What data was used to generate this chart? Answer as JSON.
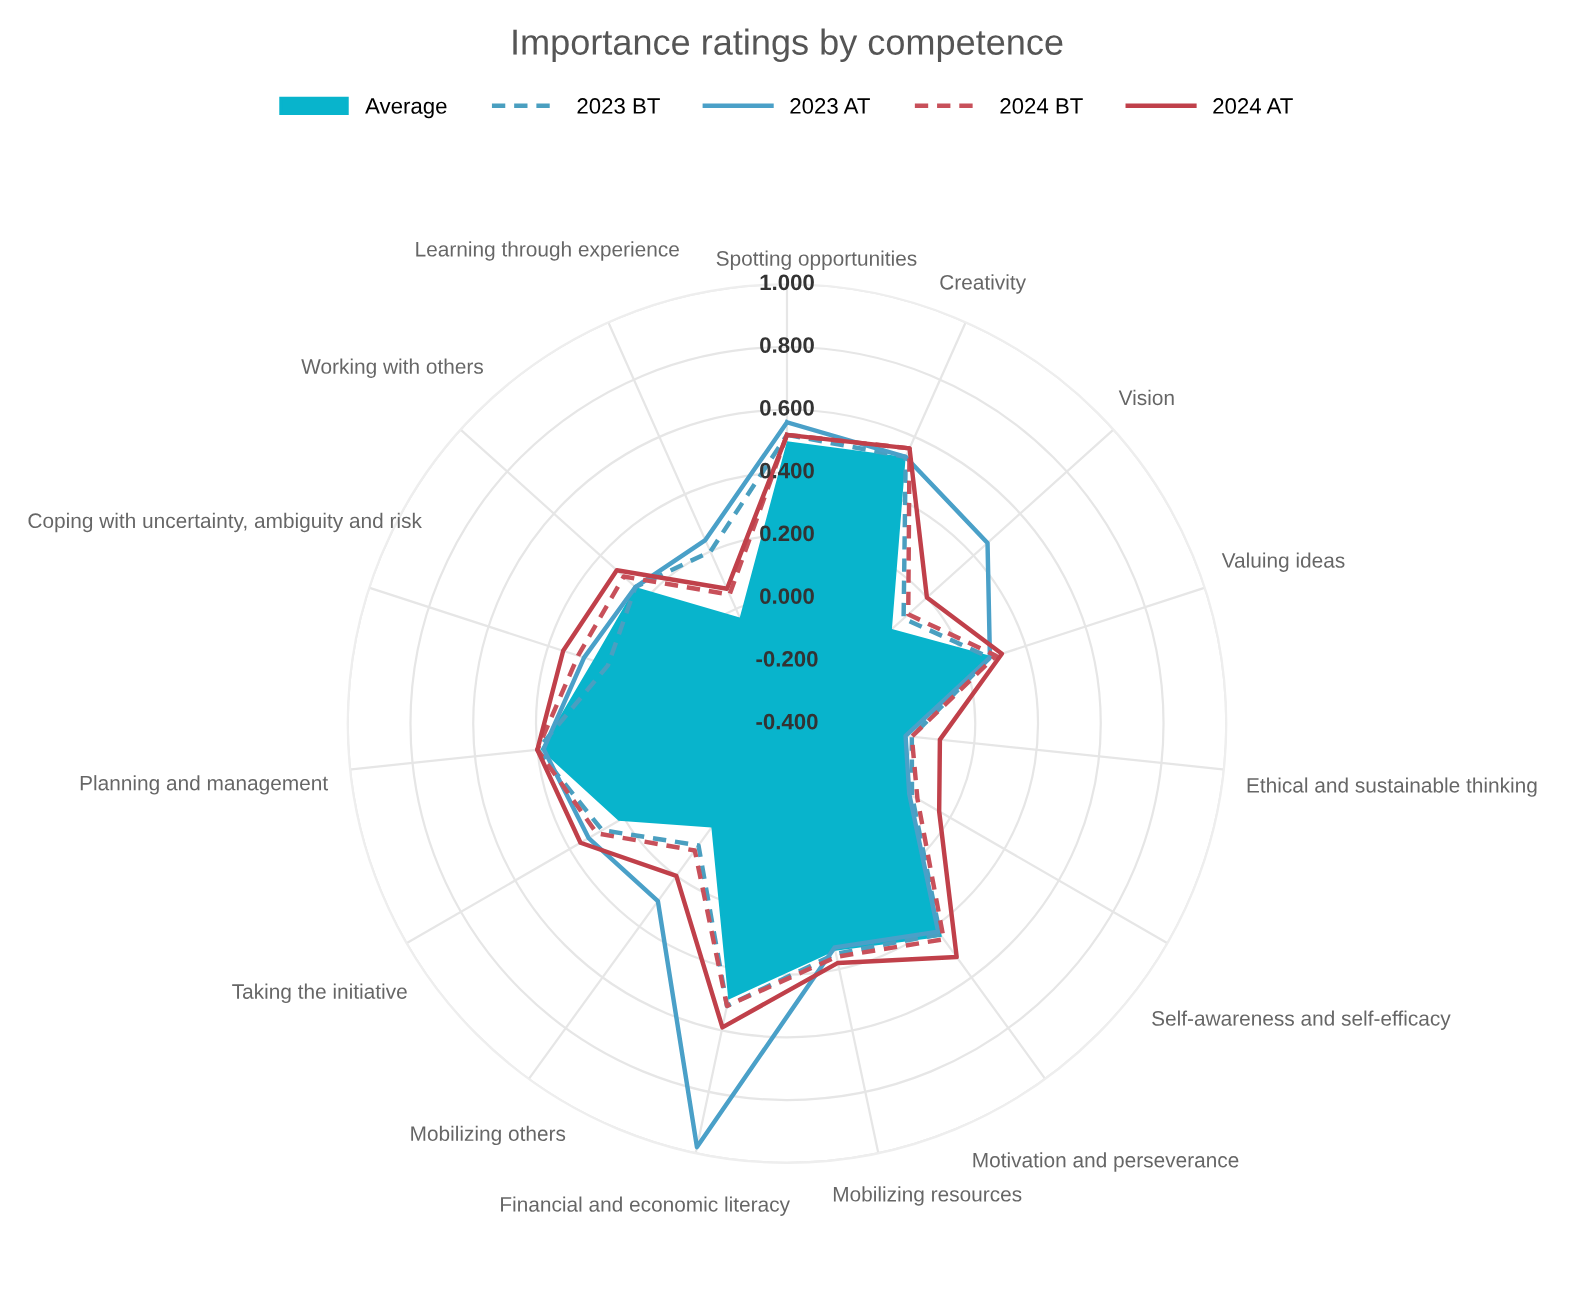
{
  "chart_data": {
    "type": "radar",
    "title": "Importance ratings by competence",
    "categories": [
      "Spotting opportunities",
      "Creativity",
      "Vision",
      "Valuing ideas",
      "Ethical and sustainable thinking",
      "Self-awareness and self-efficacy",
      "Motivation and perseverance",
      "Mobilizing resources",
      "Financial and economic literacy",
      "Mobilizing others",
      "Taking the initiative",
      "Planning and management",
      "Coping with uncertainty, ambiguity and risk",
      "Working with others",
      "Learning through experience"
    ],
    "series": [
      {
        "name": "Average",
        "color": "#08b4cc",
        "type": "area",
        "values": [
          0.5,
          0.53,
          0.05,
          0.29,
          -0.02,
          0.05,
          0.44,
          0.34,
          0.5,
          0.01,
          0.22,
          0.39,
          0.25,
          0.25,
          -0.03
        ]
      },
      {
        "name": "2023 BT",
        "color": "#4a9fc0",
        "line_style": "dashed",
        "values": [
          0.52,
          0.53,
          0.1,
          0.28,
          0.0,
          0.06,
          0.43,
          0.35,
          0.52,
          0.08,
          0.28,
          0.4,
          0.2,
          0.25,
          0.2
        ]
      },
      {
        "name": "2023 AT",
        "color": "#4aa0c8",
        "line_style": "solid",
        "values": [
          0.56,
          0.53,
          0.46,
          0.28,
          -0.02,
          0.05,
          0.42,
          0.33,
          0.98,
          0.3,
          0.33,
          0.38,
          0.28,
          0.25,
          0.24
        ]
      },
      {
        "name": "2024 BT",
        "color": "#c8505a",
        "line_style": "dashed",
        "values": [
          0.52,
          0.56,
          0.12,
          0.3,
          0.0,
          0.08,
          0.45,
          0.36,
          0.52,
          0.1,
          0.3,
          0.4,
          0.3,
          0.3,
          0.05
        ]
      },
      {
        "name": "2024 AT",
        "color": "#c0404a",
        "line_style": "solid",
        "values": [
          0.52,
          0.56,
          0.2,
          0.32,
          0.09,
          0.16,
          0.52,
          0.38,
          0.59,
          0.2,
          0.36,
          0.4,
          0.35,
          0.33,
          0.07
        ]
      }
    ],
    "ylim": [
      -0.4,
      1.0
    ],
    "yticks": [
      {
        "value": -0.4,
        "label": "-0.400"
      },
      {
        "value": -0.2,
        "label": "-0.200"
      },
      {
        "value": 0,
        "label": "0.000"
      },
      {
        "value": 0.2,
        "label": "0.200"
      },
      {
        "value": 0.4,
        "label": "0.400"
      },
      {
        "value": 0.6,
        "label": "0.600"
      },
      {
        "value": 0.8,
        "label": "0.800"
      },
      {
        "value": 1.0,
        "label": "1.000"
      }
    ],
    "grid": true,
    "legend": "top"
  }
}
